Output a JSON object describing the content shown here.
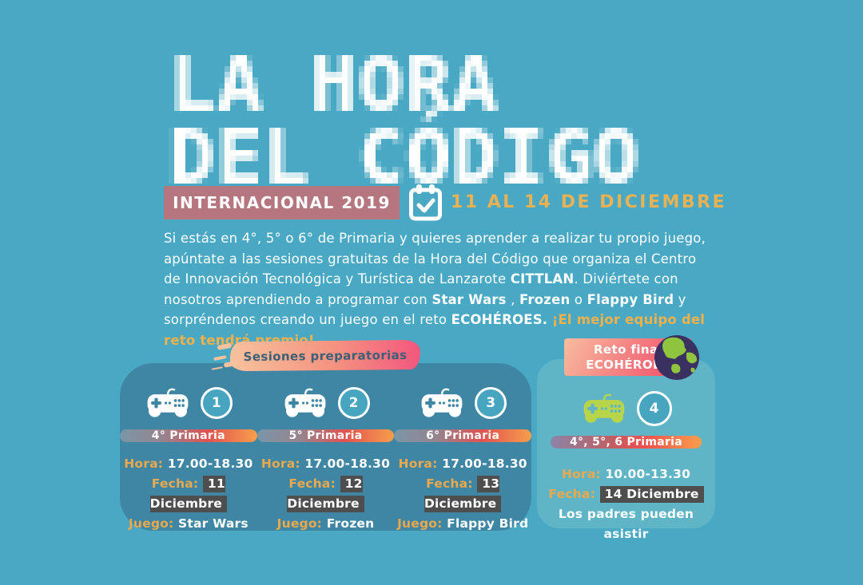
{
  "header": {
    "title_line1": "LA HORA",
    "title_line2": "DEL CÓDIGO",
    "edition_badge": "INTERNACIONAL 2019",
    "calendar_icon": "calendar-check-icon",
    "date_range": "11 AL 14 DE DICIEMBRE"
  },
  "intro": {
    "segments": [
      {
        "text": "Si estás en 4°, 5° o 6° de Primaria y quieres aprender a realizar tu propio juego, apúntate a las sesiones gratuitas de la Hora del Código que organiza el Centro de Innovación Tecnológica y Turística de Lanzarote ",
        "style": "normal"
      },
      {
        "text": "CITTLAN",
        "style": "bold"
      },
      {
        "text": ". Diviértete con nosotros aprendiendo a programar con ",
        "style": "normal"
      },
      {
        "text": "Star Wars",
        "style": "bold"
      },
      {
        "text": " , ",
        "style": "normal"
      },
      {
        "text": "Frozen",
        "style": "bold"
      },
      {
        "text": " o ",
        "style": "normal"
      },
      {
        "text": "Flappy Bird",
        "style": "bold"
      },
      {
        "text": " y sorpréndenos creando un juego en el reto ",
        "style": "normal"
      },
      {
        "text": "ECOHÉROES.",
        "style": "bold"
      },
      {
        "text": " ",
        "style": "normal"
      },
      {
        "text": "¡El mejor equipo del reto tendrá premio!",
        "style": "bold-gold"
      }
    ]
  },
  "labels": {
    "hora": "Hora:",
    "fecha": "Fecha:",
    "juego": "Juego:"
  },
  "prep": {
    "banner_label": "Sesiones preparatorias"
  },
  "sessions": [
    {
      "number": "1",
      "icon": "gamepad-icon",
      "grade": "4° Primaria",
      "hora": "17.00-18.30",
      "fecha": "11 Diciembre",
      "juego": "Star Wars"
    },
    {
      "number": "2",
      "icon": "gamepad-icon",
      "grade": "5° Primaria",
      "hora": "17.00-18.30",
      "fecha": "12 Diciembre",
      "juego": "Frozen"
    },
    {
      "number": "3",
      "icon": "gamepad-icon",
      "grade": "6° Primaria",
      "hora": "17.00-18.30",
      "fecha": "13 Diciembre",
      "juego": "Flappy Bird"
    }
  ],
  "final": {
    "banner_line1": "Reto final",
    "banner_line2": "ECOHÉROES",
    "globe_icon": "globe-icon",
    "number": "4",
    "icon": "gamepad-icon",
    "grade": "4°, 5°, 6 Primaria",
    "hora": "10.00-13.30",
    "fecha": "14 Diciembre",
    "note": "Los padres pueden asistir"
  },
  "colors": {
    "background": "#49A8C3",
    "panel": "#3E86A3",
    "panel_light": "#5FB5C6",
    "badge": "#B5767F",
    "gold": "#E8B254",
    "label_gold": "#EAA94E",
    "premio_gold": "#F0B14C",
    "fecha_highlight": "#4E4E4E",
    "pill_slate": "#7A96A9",
    "pill_red": "#E15250",
    "pill_orange": "#F89E4C",
    "brush_peach": "#F7C29D",
    "brush_pink": "#F3577E",
    "reto_peach": "#F8BC9E",
    "reto_pink": "#F2556E",
    "globe_sea": "#3A3160",
    "globe_land": "#8FC43F",
    "gamepad_green": "#B8D54A"
  }
}
